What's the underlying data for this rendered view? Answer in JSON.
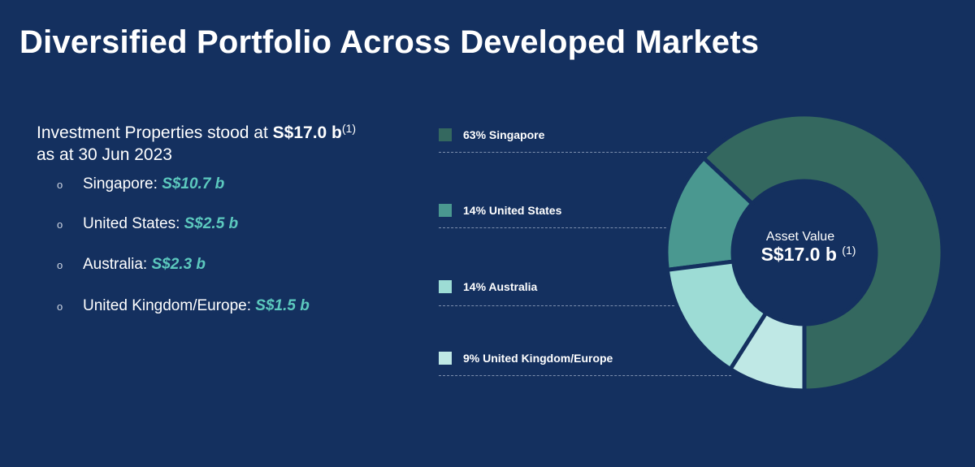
{
  "title": "Diversified Portfolio Across Developed Markets",
  "summary": {
    "line1_prefix": "Investment Properties stood at ",
    "line1_value": "S$17.0 b",
    "line1_note": "(1)",
    "line2": "as at 30 Jun 2023"
  },
  "bullets": [
    {
      "label": "Singapore: ",
      "value": "S$10.7 b"
    },
    {
      "label": "United States: ",
      "value": "S$2.5 b"
    },
    {
      "label": "Australia: ",
      "value": "S$2.3 b"
    },
    {
      "label": "United Kingdom/Europe: ",
      "value": "S$1.5 b"
    }
  ],
  "bullet_marker": "o",
  "legend": [
    {
      "text": "63% Singapore",
      "color": "#34685f"
    },
    {
      "text": "14% United States",
      "color": "#4a9890"
    },
    {
      "text": "14% Australia",
      "color": "#9ddcd5"
    },
    {
      "text": "9%  United Kingdom/Europe",
      "color": "#bfe8e5"
    }
  ],
  "chart_data": {
    "type": "pie",
    "categories": [
      "Singapore",
      "United States",
      "Australia",
      "United Kingdom/Europe"
    ],
    "values": [
      63,
      14,
      14,
      9
    ],
    "colors": [
      "#34685f",
      "#4a9890",
      "#9ddcd5",
      "#bfe8e5"
    ],
    "center_label": "Asset Value",
    "center_value": "S$17.0 b",
    "center_note": "(1)"
  }
}
